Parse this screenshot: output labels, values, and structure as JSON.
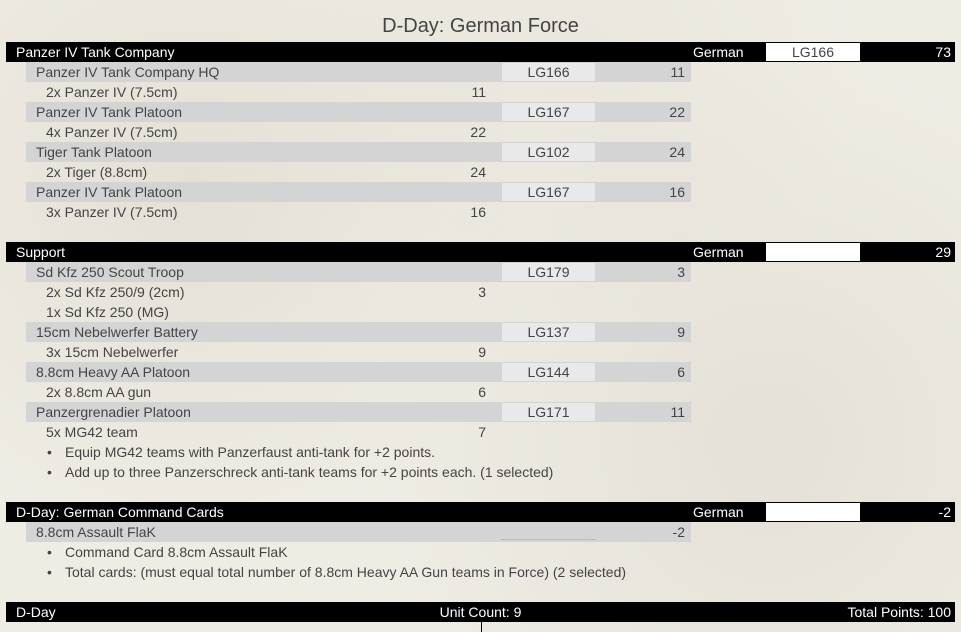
{
  "title": "D-Day: German Force",
  "sections": [
    {
      "name": "Panzer IV Tank Company",
      "nation": "German",
      "code": "LG166",
      "points": "73",
      "units": [
        {
          "label": "Panzer IV Tank Company HQ",
          "code": "LG166",
          "points": "11",
          "subs": [
            {
              "label": "2x Panzer IV (7.5cm)",
              "points": "11"
            }
          ],
          "options": []
        },
        {
          "label": "Panzer IV Tank Platoon",
          "code": "LG167",
          "points": "22",
          "subs": [
            {
              "label": "4x Panzer IV (7.5cm)",
              "points": "22"
            }
          ],
          "options": []
        },
        {
          "label": "Tiger Tank Platoon",
          "code": "LG102",
          "points": "24",
          "subs": [
            {
              "label": "2x Tiger (8.8cm)",
              "points": "24"
            }
          ],
          "options": []
        },
        {
          "label": "Panzer IV Tank Platoon",
          "code": "LG167",
          "points": "16",
          "subs": [
            {
              "label": "3x Panzer IV (7.5cm)",
              "points": "16"
            }
          ],
          "options": []
        }
      ]
    },
    {
      "name": "Support",
      "nation": "German",
      "code": "",
      "points": "29",
      "units": [
        {
          "label": "Sd Kfz 250 Scout Troop",
          "code": "LG179",
          "points": "3",
          "subs": [
            {
              "label": "2x Sd Kfz 250/9 (2cm)",
              "points": "3"
            },
            {
              "label": "1x Sd Kfz 250 (MG)",
              "points": ""
            }
          ],
          "options": []
        },
        {
          "label": "15cm Nebelwerfer Battery",
          "code": "LG137",
          "points": "9",
          "subs": [
            {
              "label": "3x 15cm Nebelwerfer",
              "points": "9"
            }
          ],
          "options": []
        },
        {
          "label": "8.8cm Heavy AA Platoon",
          "code": "LG144",
          "points": "6",
          "subs": [
            {
              "label": "2x 8.8cm AA gun",
              "points": "6"
            }
          ],
          "options": []
        },
        {
          "label": "Panzergrenadier Platoon",
          "code": "LG171",
          "points": "11",
          "subs": [
            {
              "label": "5x MG42 team",
              "points": "7"
            }
          ],
          "options": [
            "Equip MG42 teams with Panzerfaust anti-tank for +2 points.",
            "Add up to three Panzerschreck anti-tank teams for +2 points each.  (1 selected)"
          ]
        }
      ]
    },
    {
      "name": "D-Day: German Command Cards",
      "nation": "German",
      "code": "",
      "points": "-2",
      "units": [
        {
          "label": "8.8cm Assault FlaK",
          "code": "",
          "points": "-2",
          "subs": [],
          "options": [
            "Command Card 8.8cm Assault FlaK",
            "Total cards: (must equal total number of 8.8cm Heavy AA Gun teams in Force)  (2 selected)"
          ]
        }
      ]
    }
  ],
  "footer": {
    "name": "D-Day",
    "unit_count": "Unit Count: 9",
    "total_points": "Total Points: 100"
  }
}
